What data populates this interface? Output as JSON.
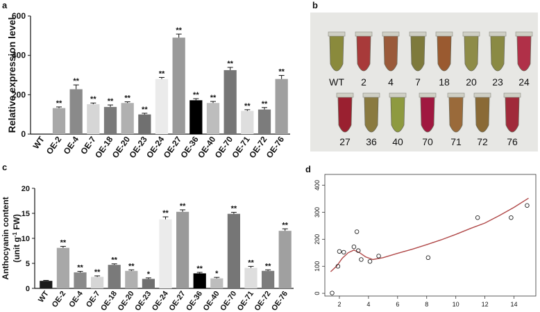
{
  "panels": {
    "a": {
      "letter": "a"
    },
    "b": {
      "letter": "b"
    },
    "c": {
      "letter": "c"
    },
    "d": {
      "letter": "d"
    }
  },
  "photo": {
    "row1_labels": [
      "WT",
      "2",
      "4",
      "7",
      "18",
      "20",
      "23",
      "24"
    ],
    "row2_labels": [
      "27",
      "36",
      "40",
      "70",
      "71",
      "72",
      "76"
    ],
    "row1_colors": [
      "#8a8a3c",
      "#a83a3a",
      "#9a5a3a",
      "#7e7a3c",
      "#9a5a30",
      "#8e8c48",
      "#8a8a44",
      "#b03048"
    ],
    "row2_colors": [
      "#9a2030",
      "#8a7a40",
      "#8e9a40",
      "#a01840",
      "#9a6a3a",
      "#8a6a36",
      "#a02a3a"
    ]
  },
  "chart_data": [
    {
      "id": "a",
      "type": "bar",
      "title": "",
      "xlabel": "",
      "ylabel": "Relative expression level",
      "ylim": [
        0,
        600
      ],
      "yticks": [
        0,
        200,
        400,
        600
      ],
      "categories": [
        "WT",
        "OE-2",
        "OE-4",
        "OE-7",
        "OE-18",
        "OE-20",
        "OE-23",
        "OE-24",
        "OE-27",
        "OE-36",
        "OE-40",
        "OE-70",
        "OE-71",
        "OE-72",
        "OE-76"
      ],
      "values": [
        1,
        132,
        228,
        152,
        138,
        158,
        100,
        280,
        490,
        172,
        158,
        325,
        118,
        125,
        280
      ],
      "errors": [
        0,
        6,
        22,
        6,
        10,
        6,
        6,
        8,
        18,
        8,
        8,
        14,
        6,
        10,
        18
      ],
      "sig": [
        "",
        "**",
        "**",
        "**",
        "**",
        "**",
        "**",
        "**",
        "**",
        "**",
        "**",
        "**",
        "**",
        "**",
        "**"
      ],
      "colors": [
        "#1a1a1a",
        "#a8a8a8",
        "#8a8a8a",
        "#d6d6d6",
        "#7a7a7a",
        "#b0b0b0",
        "#707070",
        "#ebebeb",
        "#9a9a9a",
        "#000000",
        "#bdbdbd",
        "#767676",
        "#dedede",
        "#7c7c7c",
        "#a0a0a0"
      ]
    },
    {
      "id": "c",
      "type": "bar",
      "title": "",
      "xlabel": "",
      "ylabel": "Anthocyanin content",
      "ylabel2": "(unit g",
      "ylabel2_sup": "-1",
      "ylabel2_end": " FW)",
      "ylim": [
        0,
        20
      ],
      "yticks": [
        0,
        5,
        10,
        15,
        20
      ],
      "categories": [
        "WT",
        "OE-2",
        "OE-4",
        "OE-7",
        "OE-18",
        "OE-20",
        "OE-23",
        "OE-24",
        "OE-27",
        "OE-36",
        "OE-40",
        "OE-70",
        "OE-71",
        "OE-72",
        "OE-76"
      ],
      "values": [
        1.5,
        8.1,
        3.2,
        2.3,
        4.7,
        3.5,
        1.9,
        13.8,
        15.3,
        3.0,
        2.0,
        14.9,
        4.1,
        3.5,
        11.5
      ],
      "errors": [
        0.1,
        0.3,
        0.2,
        0.2,
        0.2,
        0.2,
        0.2,
        0.5,
        0.4,
        0.2,
        0.2,
        0.3,
        0.3,
        0.2,
        0.4
      ],
      "sig": [
        "",
        "**",
        "**",
        "**",
        "**",
        "**",
        "*",
        "**",
        "**",
        "**",
        "*",
        "**",
        "**",
        "**",
        "**"
      ],
      "colors": [
        "#1a1a1a",
        "#a8a8a8",
        "#8a8a8a",
        "#d6d6d6",
        "#7a7a7a",
        "#b0b0b0",
        "#707070",
        "#ebebeb",
        "#9a9a9a",
        "#000000",
        "#bdbdbd",
        "#767676",
        "#dedede",
        "#7c7c7c",
        "#a0a0a0"
      ]
    },
    {
      "id": "d",
      "type": "scatter",
      "title": "",
      "xlabel": "",
      "ylabel": "",
      "xlim": [
        1,
        15.5
      ],
      "ylim": [
        -10,
        440
      ],
      "xticks": [
        2,
        4,
        6,
        8,
        10,
        12,
        14
      ],
      "yticks": [
        0,
        100,
        200,
        300,
        400
      ],
      "points": [
        {
          "x": 1.5,
          "y": 1
        },
        {
          "x": 1.9,
          "y": 100
        },
        {
          "x": 2.0,
          "y": 155
        },
        {
          "x": 2.3,
          "y": 152
        },
        {
          "x": 3.0,
          "y": 172
        },
        {
          "x": 3.2,
          "y": 228
        },
        {
          "x": 3.3,
          "y": 158
        },
        {
          "x": 3.5,
          "y": 125
        },
        {
          "x": 4.1,
          "y": 118
        },
        {
          "x": 4.7,
          "y": 138
        },
        {
          "x": 8.1,
          "y": 132
        },
        {
          "x": 11.5,
          "y": 280
        },
        {
          "x": 13.8,
          "y": 280
        },
        {
          "x": 14.9,
          "y": 325
        }
      ],
      "fit": [
        {
          "x": 1.4,
          "y": 80
        },
        {
          "x": 1.8,
          "y": 100
        },
        {
          "x": 2.2,
          "y": 130
        },
        {
          "x": 2.6,
          "y": 150
        },
        {
          "x": 3.0,
          "y": 160
        },
        {
          "x": 3.4,
          "y": 150
        },
        {
          "x": 3.8,
          "y": 135
        },
        {
          "x": 4.3,
          "y": 125
        },
        {
          "x": 5.0,
          "y": 132
        },
        {
          "x": 6.0,
          "y": 148
        },
        {
          "x": 7.0,
          "y": 163
        },
        {
          "x": 8.0,
          "y": 180
        },
        {
          "x": 9.0,
          "y": 198
        },
        {
          "x": 10.0,
          "y": 218
        },
        {
          "x": 11.0,
          "y": 240
        },
        {
          "x": 12.0,
          "y": 260
        },
        {
          "x": 13.0,
          "y": 288
        },
        {
          "x": 14.0,
          "y": 318
        },
        {
          "x": 15.0,
          "y": 352
        }
      ],
      "fit_color": "#b04848"
    }
  ]
}
